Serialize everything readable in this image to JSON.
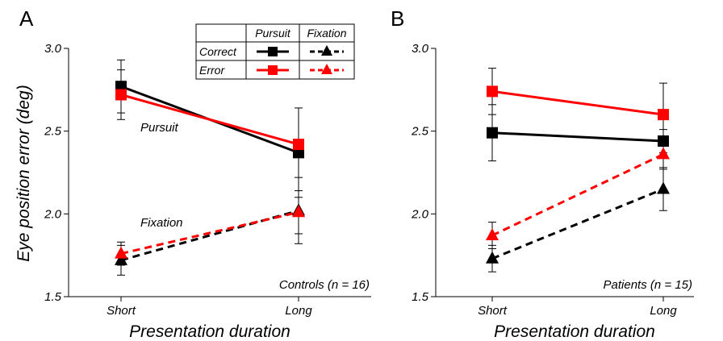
{
  "chart_data": [
    {
      "type": "line",
      "panel_label": "A",
      "categories": [
        "Short",
        "Long"
      ],
      "xlabel": "Presentation duration",
      "ylabel": "Eye position error (deg)",
      "ylim": [
        1.5,
        3.0
      ],
      "yticks": [
        "1.5",
        "2.0",
        "2.5",
        "3.0"
      ],
      "group_note": "Controls (n = 16)",
      "annotations": [
        "Pursuit",
        "Fixation"
      ],
      "series": [
        {
          "name": "Correct Pursuit",
          "marker": "square",
          "color": "#000000",
          "dash": false,
          "values": [
            2.77,
            2.37
          ],
          "err": [
            0.16,
            0.27
          ]
        },
        {
          "name": "Error Pursuit",
          "marker": "square",
          "color": "#ff0000",
          "dash": false,
          "values": [
            2.72,
            2.42
          ],
          "err": [
            0.15,
            0.0
          ]
        },
        {
          "name": "Correct Fixation",
          "marker": "triangle",
          "color": "#000000",
          "dash": true,
          "values": [
            1.72,
            2.02
          ],
          "err": [
            0.09,
            0.2
          ]
        },
        {
          "name": "Error Fixation",
          "marker": "triangle",
          "color": "#ff0000",
          "dash": true,
          "values": [
            1.76,
            2.01
          ],
          "err": [
            0.07,
            0.13
          ]
        }
      ]
    },
    {
      "type": "line",
      "panel_label": "B",
      "categories": [
        "Short",
        "Long"
      ],
      "xlabel": "Presentation duration",
      "ylim": [
        1.5,
        3.0
      ],
      "yticks": [
        "1.5",
        "2.0",
        "2.5",
        "3.0"
      ],
      "group_note": "Patients (n = 15)",
      "series": [
        {
          "name": "Correct Pursuit",
          "marker": "square",
          "color": "#000000",
          "dash": false,
          "values": [
            2.49,
            2.44
          ],
          "err": [
            0.17,
            0.07
          ]
        },
        {
          "name": "Error Pursuit",
          "marker": "square",
          "color": "#ff0000",
          "dash": false,
          "values": [
            2.74,
            2.6
          ],
          "err": [
            0.14,
            0.19
          ]
        },
        {
          "name": "Correct Fixation",
          "marker": "triangle",
          "color": "#000000",
          "dash": true,
          "values": [
            1.73,
            2.15
          ],
          "err": [
            0.08,
            0.13
          ]
        },
        {
          "name": "Error Fixation",
          "marker": "triangle",
          "color": "#ff0000",
          "dash": true,
          "values": [
            1.87,
            2.36
          ],
          "err": [
            0.08,
            0.09
          ]
        }
      ]
    }
  ],
  "legend": {
    "columns": [
      "Pursuit",
      "Fixation"
    ],
    "rows": [
      "Correct",
      "Error"
    ]
  }
}
